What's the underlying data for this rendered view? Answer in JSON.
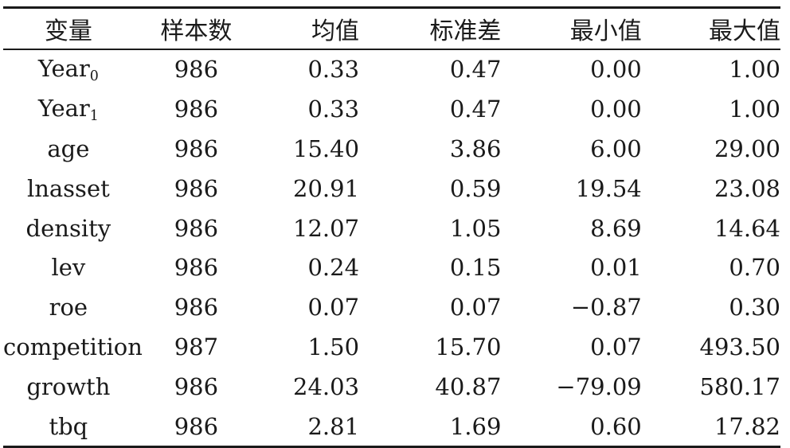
{
  "table": {
    "headers": [
      "变量",
      "样本数",
      "均值",
      "标准差",
      "最小值",
      "最大值"
    ],
    "rows": [
      {
        "var_base": "Year",
        "var_sub": "0",
        "n": "986",
        "mean": "0.33",
        "sd": "0.47",
        "min": "0.00",
        "max": "1.00"
      },
      {
        "var_base": "Year",
        "var_sub": "1",
        "n": "986",
        "mean": "0.33",
        "sd": "0.47",
        "min": "0.00",
        "max": "1.00"
      },
      {
        "var_base": "age",
        "var_sub": "",
        "n": "986",
        "mean": "15.40",
        "sd": "3.86",
        "min": "6.00",
        "max": "29.00"
      },
      {
        "var_base": "lnasset",
        "var_sub": "",
        "n": "986",
        "mean": "20.91",
        "sd": "0.59",
        "min": "19.54",
        "max": "23.08"
      },
      {
        "var_base": "density",
        "var_sub": "",
        "n": "986",
        "mean": "12.07",
        "sd": "1.05",
        "min": "8.69",
        "max": "14.64"
      },
      {
        "var_base": "lev",
        "var_sub": "",
        "n": "986",
        "mean": "0.24",
        "sd": "0.15",
        "min": "0.01",
        "max": "0.70"
      },
      {
        "var_base": "roe",
        "var_sub": "",
        "n": "986",
        "mean": "0.07",
        "sd": "0.07",
        "min": "−0.87",
        "max": "0.30"
      },
      {
        "var_base": "competition",
        "var_sub": "",
        "n": "987",
        "mean": "1.50",
        "sd": "15.70",
        "min": "0.07",
        "max": "493.50"
      },
      {
        "var_base": "growth",
        "var_sub": "",
        "n": "986",
        "mean": "24.03",
        "sd": "40.87",
        "min": "−79.09",
        "max": "580.17"
      },
      {
        "var_base": "tbq",
        "var_sub": "",
        "n": "986",
        "mean": "2.81",
        "sd": "1.69",
        "min": "0.60",
        "max": "17.82"
      }
    ]
  }
}
